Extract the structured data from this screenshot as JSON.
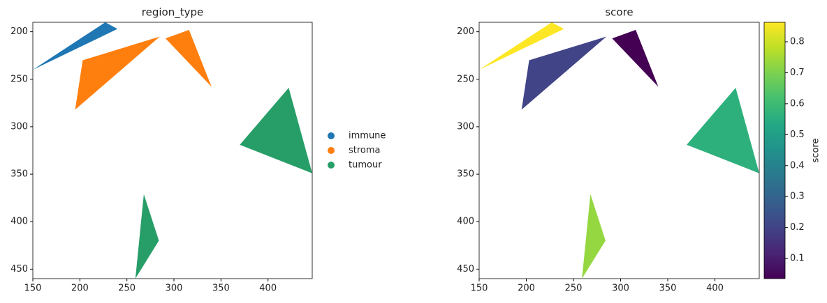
{
  "chart_data": [
    {
      "type": "polygon",
      "title": "region_type",
      "xlim": [
        150,
        447
      ],
      "ylim": [
        460,
        190
      ],
      "xticks": [
        150,
        200,
        250,
        300,
        350,
        400
      ],
      "yticks": [
        200,
        250,
        300,
        350,
        400,
        450
      ],
      "legend": "right",
      "series": [
        {
          "name": "immune",
          "color": "#1f77b4",
          "polygons": [
            [
              [
                150,
                240
              ],
              [
                227,
                190
              ],
              [
                240,
                197
              ]
            ]
          ]
        },
        {
          "name": "stroma",
          "color": "#ff7f0e",
          "polygons": [
            [
              [
                195,
                282
              ],
              [
                203,
                230
              ],
              [
                285,
                205
              ]
            ],
            [
              [
                291,
                207
              ],
              [
                316,
                198
              ],
              [
                340,
                258
              ]
            ]
          ]
        },
        {
          "name": "tumour",
          "color": "#279e68",
          "polygons": [
            [
              [
                370,
                319
              ],
              [
                422,
                259
              ],
              [
                447,
                349
              ]
            ],
            [
              [
                268,
                371
              ],
              [
                284,
                420
              ],
              [
                259,
                460
              ]
            ]
          ]
        }
      ]
    },
    {
      "type": "polygon",
      "title": "score",
      "xlim": [
        150,
        447
      ],
      "ylim": [
        460,
        190
      ],
      "xticks": [
        150,
        200,
        250,
        300,
        350,
        400
      ],
      "yticks": [
        200,
        250,
        300,
        350,
        400,
        450
      ],
      "polygons": [
        [
          [
            150,
            240
          ],
          [
            227,
            190
          ],
          [
            240,
            197
          ]
        ],
        [
          [
            195,
            282
          ],
          [
            203,
            230
          ],
          [
            285,
            205
          ]
        ],
        [
          [
            291,
            207
          ],
          [
            316,
            198
          ],
          [
            340,
            258
          ]
        ],
        [
          [
            370,
            319
          ],
          [
            422,
            259
          ],
          [
            447,
            349
          ]
        ],
        [
          [
            268,
            371
          ],
          [
            284,
            420
          ],
          [
            259,
            460
          ]
        ]
      ],
      "values": [
        0.863,
        0.2,
        0.035,
        0.56,
        0.73
      ],
      "colormap": "viridis",
      "colorbar": {
        "label": "score",
        "lim": [
          0.035,
          0.863
        ],
        "ticks": [
          0.1,
          0.2,
          0.3,
          0.4,
          0.5,
          0.6,
          0.7,
          0.8
        ]
      }
    }
  ]
}
